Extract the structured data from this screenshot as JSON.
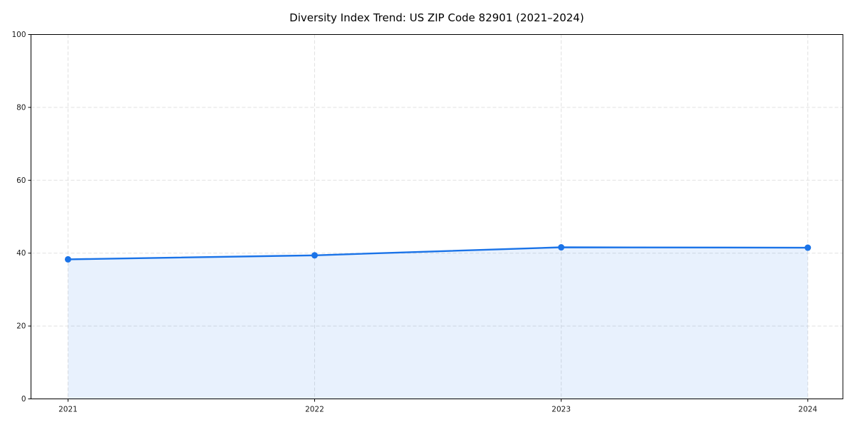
{
  "page": {
    "background": "#ffffff"
  },
  "chart_data": {
    "type": "area",
    "title": "Diversity Index Trend: US ZIP Code 82901 (2021–2024)",
    "categories": [
      "2021",
      "2022",
      "2023",
      "2024"
    ],
    "series": [
      {
        "name": "Diversity Index",
        "values": [
          38.3,
          39.4,
          41.6,
          41.5
        ]
      }
    ],
    "xlabel": "",
    "ylabel": "",
    "ylim": [
      0,
      100
    ],
    "yticks": [
      0,
      20,
      40,
      60,
      80,
      100
    ],
    "grid": true,
    "grid_style": "dashed",
    "legend_position": "none",
    "line_color": "#1a73e8",
    "marker": "circle",
    "fill_opacity": 0.1,
    "grid_color": "#e0e0e0",
    "axis_color": "#000000",
    "tick_label_color": "#1a1a1a"
  }
}
